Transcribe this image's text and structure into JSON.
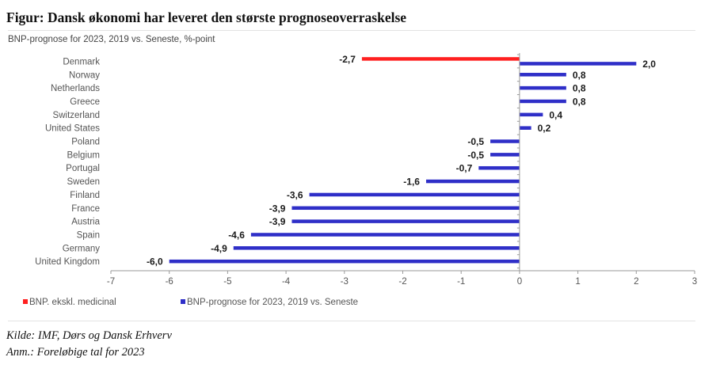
{
  "title": "Figur: Dansk økonomi har leveret den største prognoseoverraskelse",
  "subtitle": "BNP-prognose for 2023, 2019 vs. Seneste, %-point",
  "source": "Kilde: IMF, Dørs  og Dansk Erhverv",
  "note": "Anm.: Foreløbige tal for 2023",
  "colors": {
    "red": "#ff2020",
    "blue": "#2f2fc8",
    "axis": "#9a9a9a",
    "text": "#555555"
  },
  "chart_data": {
    "type": "bar",
    "orientation": "horizontal",
    "xlim": [
      -7,
      3
    ],
    "xticks": [
      -7,
      -6,
      -5,
      -4,
      -3,
      -2,
      -1,
      0,
      1,
      2,
      3
    ],
    "decimal_separator": ",",
    "categories": [
      "Denmark",
      "Norway",
      "Netherlands",
      "Greece",
      "Switzerland",
      "United States",
      "Poland",
      "Belgium",
      "Portugal",
      "Sweden",
      "Finland",
      "France",
      "Austria",
      "Spain",
      "Germany",
      "United Kingdom"
    ],
    "series": [
      {
        "name": "BNP. ekskl. medicinal",
        "color": "#ff2020",
        "values": [
          -2.7,
          null,
          null,
          null,
          null,
          null,
          null,
          null,
          null,
          null,
          null,
          null,
          null,
          null,
          null,
          null
        ]
      },
      {
        "name": "BNP-prognose for 2023, 2019 vs. Seneste",
        "color": "#2f2fc8",
        "values": [
          2.0,
          0.8,
          0.8,
          0.8,
          0.4,
          0.2,
          -0.5,
          -0.5,
          -0.7,
          -1.6,
          -3.6,
          -3.9,
          -3.9,
          -4.6,
          -4.9,
          -6.0
        ]
      }
    ],
    "legend": "bottom-left",
    "grid": false
  }
}
